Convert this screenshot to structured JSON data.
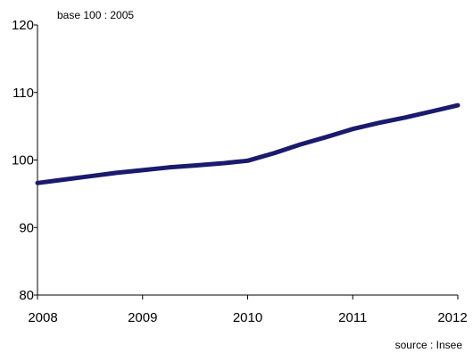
{
  "chart_data": {
    "type": "line",
    "ylabel": "base 100 : 2005",
    "source": "source : Insee",
    "xlim": [
      2008,
      2012
    ],
    "ylim": [
      80,
      120
    ],
    "x_ticks": [
      "2008",
      "2009",
      "2010",
      "2011",
      "2012"
    ],
    "y_ticks": [
      "80",
      "90",
      "100",
      "110",
      "120"
    ],
    "grid": false,
    "series": [
      {
        "color": "#1a1a6e",
        "x": [
          2008.0,
          2008.25,
          2008.5,
          2008.75,
          2009.0,
          2009.25,
          2009.5,
          2009.75,
          2010.0,
          2010.25,
          2010.5,
          2010.75,
          2011.0,
          2011.25,
          2011.5,
          2011.75,
          2012.0
        ],
        "y": [
          96.6,
          97.1,
          97.6,
          98.1,
          98.5,
          98.9,
          99.2,
          99.5,
          99.9,
          101.0,
          102.3,
          103.4,
          104.6,
          105.5,
          106.3,
          107.2,
          108.1
        ]
      }
    ]
  }
}
